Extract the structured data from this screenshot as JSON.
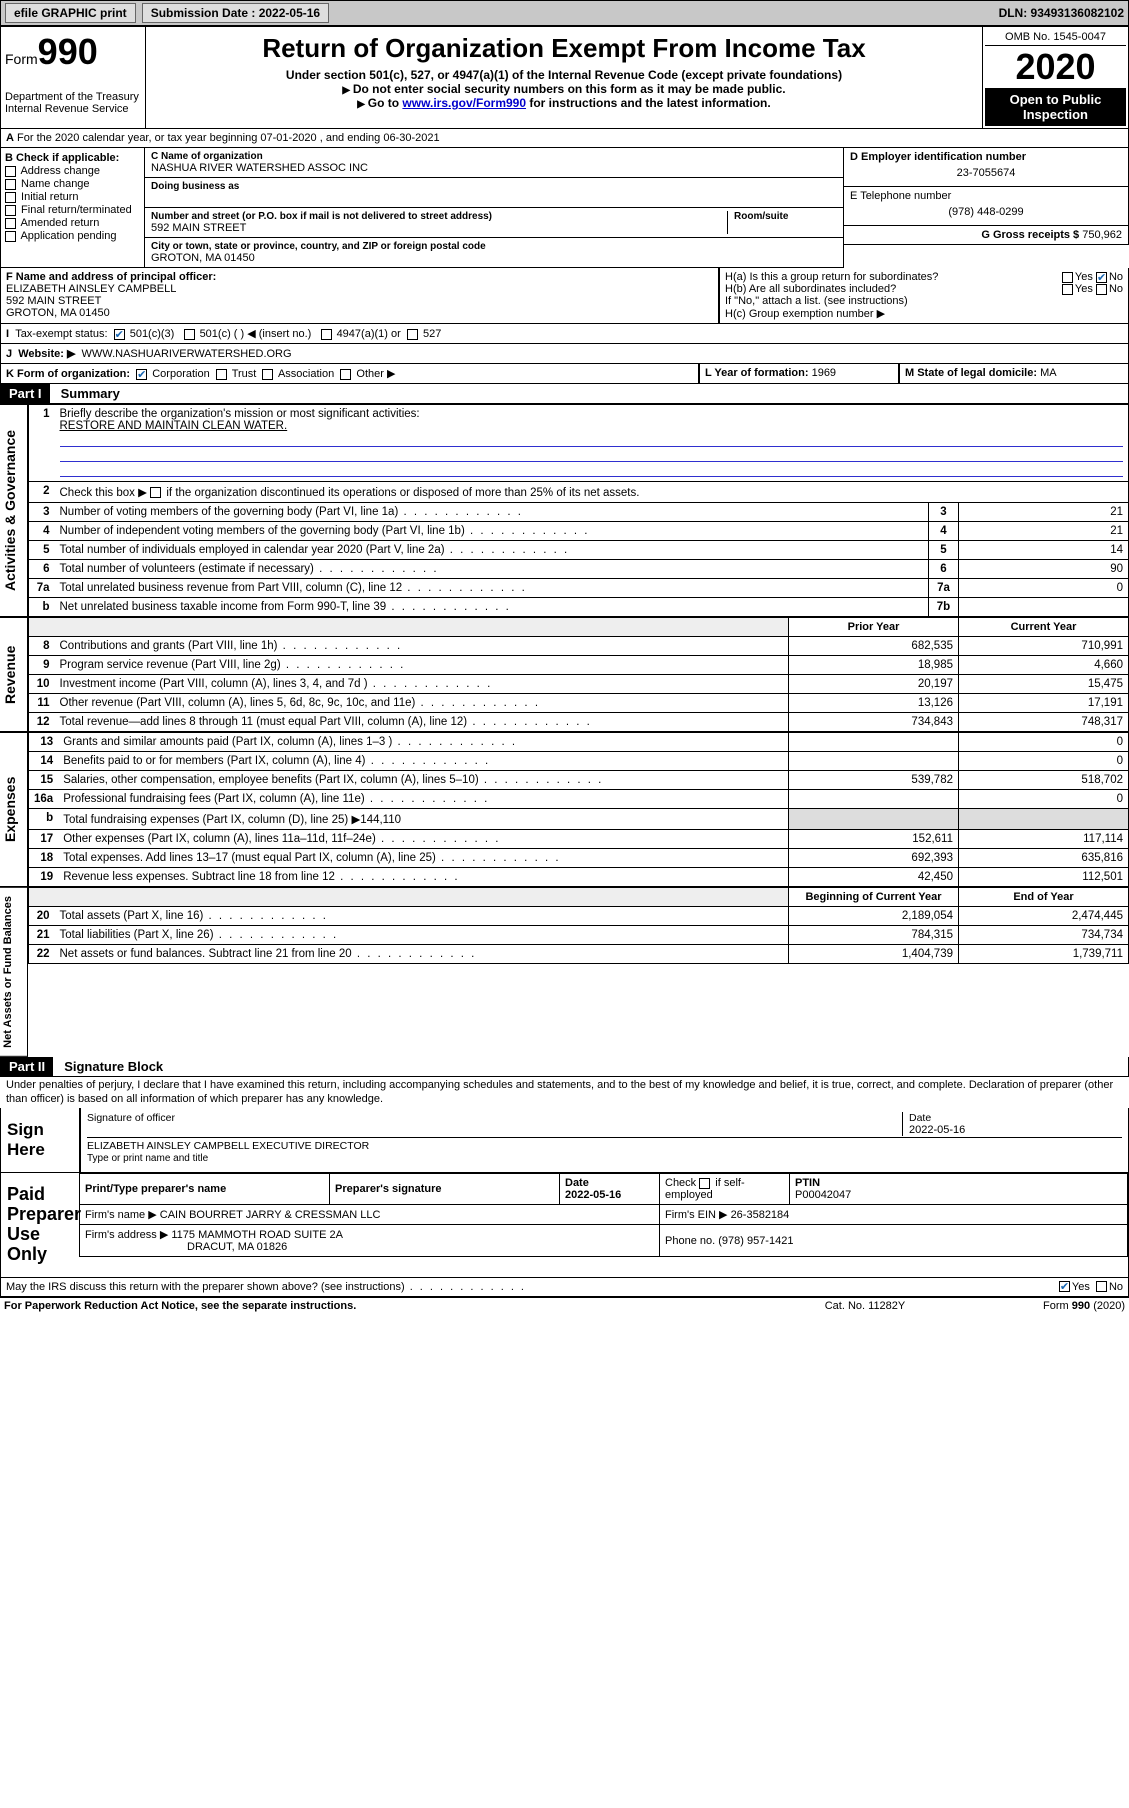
{
  "topbar": {
    "efile": "efile GRAPHIC print",
    "submission_label": "Submission Date : 2022-05-16",
    "dln": "DLN: 93493136082102"
  },
  "header": {
    "form": "Form",
    "n990": "990",
    "dept": "Department of the Treasury",
    "irs": "Internal Revenue Service",
    "title": "Return of Organization Exempt From Income Tax",
    "sub1": "Under section 501(c), 527, or 4947(a)(1) of the Internal Revenue Code (except private foundations)",
    "sub2": "Do not enter social security numbers on this form as it may be made public.",
    "sub3_pre": "Go to ",
    "sub3_link": "www.irs.gov/Form990",
    "sub3_post": " for instructions and the latest information.",
    "omb": "OMB No. 1545-0047",
    "year": "2020",
    "open": "Open to Public Inspection"
  },
  "lineA": "For the 2020 calendar year, or tax year beginning 07-01-2020    , and ending 06-30-2021",
  "bcol": {
    "hdr": "B Check if applicable:",
    "items": [
      "Address change",
      "Name change",
      "Initial return",
      "Final return/terminated",
      "Amended return",
      "Application pending"
    ]
  },
  "c": {
    "lbl": "C Name of organization",
    "name": "NASHUA RIVER WATERSHED ASSOC INC",
    "dba_lbl": "Doing business as",
    "addr_lbl": "Number and street (or P.O. box if mail is not delivered to street address)",
    "room_lbl": "Room/suite",
    "addr": "592 MAIN STREET",
    "city_lbl": "City or town, state or province, country, and ZIP or foreign postal code",
    "city": "GROTON, MA  01450"
  },
  "d": {
    "lbl": "D Employer identification number",
    "val": "23-7055674"
  },
  "e": {
    "lbl": "E Telephone number",
    "val": "(978) 448-0299"
  },
  "g": {
    "lbl": "G Gross receipts $",
    "val": "750,962"
  },
  "f": {
    "lbl": "F  Name and address of principal officer:",
    "name": "ELIZABETH AINSLEY CAMPBELL",
    "addr": "592 MAIN STREET",
    "city": "GROTON, MA  01450"
  },
  "h": {
    "a": "H(a)  Is this a group return for subordinates?",
    "b": "H(b)  Are all subordinates included?",
    "bnote": "If \"No,\" attach a list. (see instructions)",
    "c": "H(c)  Group exemption number ▶"
  },
  "i": {
    "lbl": "Tax-exempt status:",
    "o1": "501(c)(3)",
    "o2": "501(c) (   ) ◀ (insert no.)",
    "o3": "4947(a)(1) or",
    "o4": "527"
  },
  "j": {
    "lbl": "Website: ▶",
    "val": "WWW.NASHUARIVERWATERSHED.ORG"
  },
  "k": {
    "lbl": "K Form of organization:",
    "o1": "Corporation",
    "o2": "Trust",
    "o3": "Association",
    "o4": "Other ▶"
  },
  "l": {
    "lbl": "L Year of formation:",
    "val": "1969"
  },
  "m": {
    "lbl": "M State of legal domicile:",
    "val": "MA"
  },
  "part1": {
    "hdr": "Part I",
    "title": "Summary",
    "q1": "Briefly describe the organization's mission or most significant activities:",
    "a1": "RESTORE AND MAINTAIN CLEAN WATER.",
    "q2": "Check this box ▶        if the organization discontinued its operations or disposed of more than 25% of its net assets.",
    "rows_top": [
      {
        "n": "3",
        "t": "Number of voting members of the governing body (Part VI, line 1a)",
        "lab": "3",
        "v": "21"
      },
      {
        "n": "4",
        "t": "Number of independent voting members of the governing body (Part VI, line 1b)",
        "lab": "4",
        "v": "21"
      },
      {
        "n": "5",
        "t": "Total number of individuals employed in calendar year 2020 (Part V, line 2a)",
        "lab": "5",
        "v": "14"
      },
      {
        "n": "6",
        "t": "Total number of volunteers (estimate if necessary)",
        "lab": "6",
        "v": "90"
      },
      {
        "n": "7a",
        "t": "Total unrelated business revenue from Part VIII, column (C), line 12",
        "lab": "7a",
        "v": "0"
      },
      {
        "n": "b",
        "t": "Net unrelated business taxable income from Form 990-T, line 39",
        "lab": "7b",
        "v": ""
      }
    ],
    "col_prior": "Prior Year",
    "col_curr": "Current Year",
    "col_beg": "Beginning of Current Year",
    "col_end": "End of Year",
    "rev": [
      {
        "n": "8",
        "t": "Contributions and grants (Part VIII, line 1h)",
        "p": "682,535",
        "c": "710,991"
      },
      {
        "n": "9",
        "t": "Program service revenue (Part VIII, line 2g)",
        "p": "18,985",
        "c": "4,660"
      },
      {
        "n": "10",
        "t": "Investment income (Part VIII, column (A), lines 3, 4, and 7d )",
        "p": "20,197",
        "c": "15,475"
      },
      {
        "n": "11",
        "t": "Other revenue (Part VIII, column (A), lines 5, 6d, 8c, 9c, 10c, and 11e)",
        "p": "13,126",
        "c": "17,191"
      },
      {
        "n": "12",
        "t": "Total revenue—add lines 8 through 11 (must equal Part VIII, column (A), line 12)",
        "p": "734,843",
        "c": "748,317"
      }
    ],
    "exp": [
      {
        "n": "13",
        "t": "Grants and similar amounts paid (Part IX, column (A), lines 1–3 )",
        "p": "",
        "c": "0"
      },
      {
        "n": "14",
        "t": "Benefits paid to or for members (Part IX, column (A), line 4)",
        "p": "",
        "c": "0"
      },
      {
        "n": "15",
        "t": "Salaries, other compensation, employee benefits (Part IX, column (A), lines 5–10)",
        "p": "539,782",
        "c": "518,702"
      },
      {
        "n": "16a",
        "t": "Professional fundraising fees (Part IX, column (A), line 11e)",
        "p": "",
        "c": "0"
      },
      {
        "n": "b",
        "t": "Total fundraising expenses (Part IX, column (D), line 25) ▶144,110",
        "p": "—",
        "c": "—"
      },
      {
        "n": "17",
        "t": "Other expenses (Part IX, column (A), lines 11a–11d, 11f–24e)",
        "p": "152,611",
        "c": "117,114"
      },
      {
        "n": "18",
        "t": "Total expenses. Add lines 13–17 (must equal Part IX, column (A), line 25)",
        "p": "692,393",
        "c": "635,816"
      },
      {
        "n": "19",
        "t": "Revenue less expenses. Subtract line 18 from line 12",
        "p": "42,450",
        "c": "112,501"
      }
    ],
    "net": [
      {
        "n": "20",
        "t": "Total assets (Part X, line 16)",
        "p": "2,189,054",
        "c": "2,474,445"
      },
      {
        "n": "21",
        "t": "Total liabilities (Part X, line 26)",
        "p": "784,315",
        "c": "734,734"
      },
      {
        "n": "22",
        "t": "Net assets or fund balances. Subtract line 21 from line 20",
        "p": "1,404,739",
        "c": "1,739,711"
      }
    ],
    "vlab_gov": "Activities & Governance",
    "vlab_rev": "Revenue",
    "vlab_exp": "Expenses",
    "vlab_net": "Net Assets or Fund Balances"
  },
  "part2": {
    "hdr": "Part II",
    "title": "Signature Block",
    "decl": "Under penalties of perjury, I declare that I have examined this return, including accompanying schedules and statements, and to the best of my knowledge and belief, it is true, correct, and complete. Declaration of preparer (other than officer) is based on all information of which preparer has any knowledge.",
    "sign_here": "Sign Here",
    "sig_officer": "Signature of officer",
    "date_lbl": "Date",
    "date_val": "2022-05-16",
    "officer_name": "ELIZABETH AINSLEY CAMPBELL  EXECUTIVE DIRECTOR",
    "type_name": "Type or print name and title",
    "paid": "Paid Preparer Use Only",
    "h1": "Print/Type preparer's name",
    "h2": "Preparer's signature",
    "h3": "Date",
    "h3v": "2022-05-16",
    "h4": "Check        if self-employed",
    "h5": "PTIN",
    "h5v": "P00042047",
    "firm_name_lbl": "Firm's name      ▶",
    "firm_name": "CAIN BOURRET JARRY & CRESSMAN LLC",
    "firm_ein_lbl": "Firm's EIN ▶",
    "firm_ein": "26-3582184",
    "firm_addr_lbl": "Firm's address ▶",
    "firm_addr1": "1175 MAMMOTH ROAD SUITE 2A",
    "firm_addr2": "DRACUT, MA  01826",
    "phone_lbl": "Phone no.",
    "phone": "(978) 957-1421",
    "discuss": "May the IRS discuss this return with the preparer shown above? (see instructions)"
  },
  "footer": {
    "pra": "For Paperwork Reduction Act Notice, see the separate instructions.",
    "cat": "Cat. No. 11282Y",
    "form": "Form 990 (2020)"
  }
}
